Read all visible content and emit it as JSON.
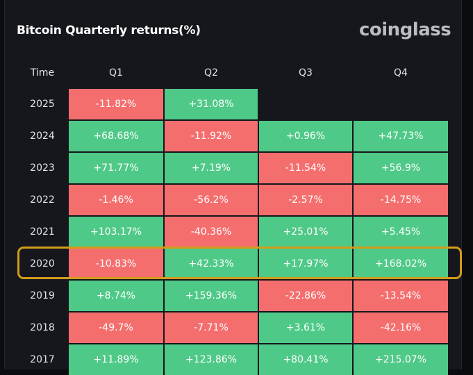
{
  "title": "Bitcoin Quarterly returns(%)",
  "logo": "coinglass",
  "colors": {
    "positive": "#4fc987",
    "negative": "#f56e6e",
    "highlight": "#d39c1a"
  },
  "columns": [
    "Time",
    "Q1",
    "Q2",
    "Q3",
    "Q4"
  ],
  "highlighted_year": "2020",
  "rows": [
    {
      "year": "2025",
      "values": [
        "-11.82%",
        "+31.08%",
        "",
        ""
      ]
    },
    {
      "year": "2024",
      "values": [
        "+68.68%",
        "-11.92%",
        "+0.96%",
        "+47.73%"
      ]
    },
    {
      "year": "2023",
      "values": [
        "+71.77%",
        "+7.19%",
        "-11.54%",
        "+56.9%"
      ]
    },
    {
      "year": "2022",
      "values": [
        "-1.46%",
        "-56.2%",
        "-2.57%",
        "-14.75%"
      ]
    },
    {
      "year": "2021",
      "values": [
        "+103.17%",
        "-40.36%",
        "+25.01%",
        "+5.45%"
      ]
    },
    {
      "year": "2020",
      "values": [
        "-10.83%",
        "+42.33%",
        "+17.97%",
        "+168.02%"
      ]
    },
    {
      "year": "2019",
      "values": [
        "+8.74%",
        "+159.36%",
        "-22.86%",
        "-13.54%"
      ]
    },
    {
      "year": "2018",
      "values": [
        "-49.7%",
        "-7.71%",
        "+3.61%",
        "-42.16%"
      ]
    },
    {
      "year": "2017",
      "values": [
        "+11.89%",
        "+123.86%",
        "+80.41%",
        "+215.07%"
      ]
    }
  ]
}
